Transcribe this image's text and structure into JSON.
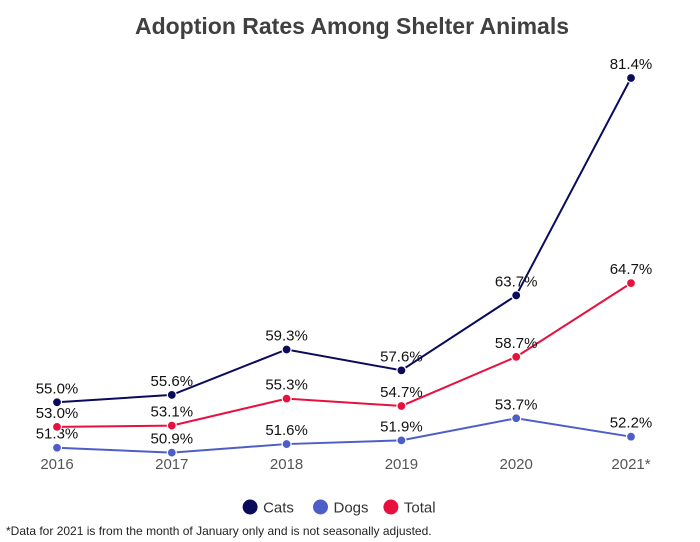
{
  "chart_data": {
    "type": "line",
    "title": "Adoption Rates Among Shelter Animals",
    "categories": [
      "2016",
      "2017",
      "2018",
      "2019",
      "2020",
      "2021*"
    ],
    "series": [
      {
        "name": "Cats",
        "color": "#0b0b5c",
        "values": [
          55.0,
          55.6,
          59.3,
          57.6,
          63.7,
          81.4
        ],
        "labels": [
          "55.0%",
          "55.6%",
          "59.3%",
          "57.6%",
          "63.7%",
          "81.4%"
        ]
      },
      {
        "name": "Dogs",
        "color": "#4d5ec9",
        "values": [
          51.3,
          50.9,
          51.6,
          51.9,
          53.7,
          52.2
        ],
        "labels": [
          "51.3%",
          "50.9%",
          "51.6%",
          "51.9%",
          "53.7%",
          "52.2%"
        ]
      },
      {
        "name": "Total",
        "color": "#e8103f",
        "values": [
          53.0,
          53.1,
          55.3,
          54.7,
          58.7,
          64.7
        ],
        "labels": [
          "53.0%",
          "53.1%",
          "55.3%",
          "54.7%",
          "58.7%",
          "64.7%"
        ]
      }
    ],
    "xlabel": "",
    "ylabel": "",
    "ylim": [
      50,
      82
    ],
    "grid": false,
    "legend_position": "bottom-center",
    "footnote": "*Data for 2021 is from the month of January only and is not seasonally adjusted."
  }
}
